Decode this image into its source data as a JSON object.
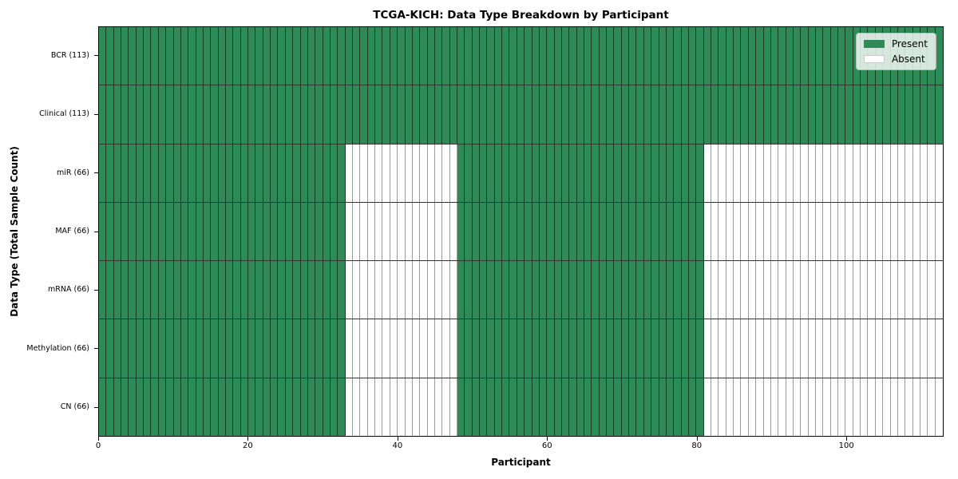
{
  "chart_data": {
    "type": "heatmap",
    "title": "TCGA-KICH: Data Type Breakdown by Participant",
    "xlabel": "Participant",
    "ylabel": "Data Type (Total Sample Count)",
    "x_ticks": [
      0,
      20,
      40,
      60,
      80,
      100
    ],
    "xlim": [
      0,
      113
    ],
    "n_participants": 113,
    "grid": "per-cell borders, black spines",
    "legend": {
      "position": "upper right",
      "entries": [
        {
          "label": "Present",
          "color": "#2e8b57"
        },
        {
          "label": "Absent",
          "color": "#ffffff"
        }
      ]
    },
    "rows": [
      {
        "data_type": "BCR",
        "label": "BCR (113)",
        "total_samples": 113,
        "present_ranges": [
          [
            0,
            113
          ]
        ]
      },
      {
        "data_type": "Clinical",
        "label": "Clinical (113)",
        "total_samples": 113,
        "present_ranges": [
          [
            0,
            113
          ]
        ]
      },
      {
        "data_type": "miR",
        "label": "miR (66)",
        "total_samples": 66,
        "present_ranges": [
          [
            0,
            33
          ],
          [
            48,
            81
          ]
        ]
      },
      {
        "data_type": "MAF",
        "label": "MAF (66)",
        "total_samples": 66,
        "present_ranges": [
          [
            0,
            33
          ],
          [
            48,
            81
          ]
        ]
      },
      {
        "data_type": "mRNA",
        "label": "mRNA (66)",
        "total_samples": 66,
        "present_ranges": [
          [
            0,
            33
          ],
          [
            48,
            81
          ]
        ]
      },
      {
        "data_type": "Methylation",
        "label": "Methylation (66)",
        "total_samples": 66,
        "present_ranges": [
          [
            0,
            33
          ],
          [
            48,
            81
          ]
        ]
      },
      {
        "data_type": "CN",
        "label": "CN (66)",
        "total_samples": 66,
        "present_ranges": [
          [
            0,
            33
          ],
          [
            48,
            81
          ]
        ]
      }
    ],
    "colors": {
      "present": "#2e8b57",
      "absent": "#ffffff",
      "spine": "#000000",
      "background": "#ffffff"
    }
  }
}
